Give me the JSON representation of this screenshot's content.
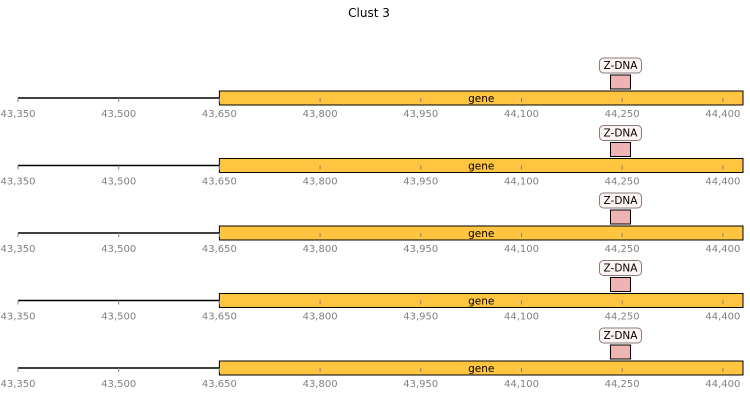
{
  "title": "Clust 3",
  "colors": {
    "gene": "#FFC440",
    "zdna": "#EEB4B4",
    "axis_line": "#000000",
    "tick_label": "#808080",
    "label_box_fill": "#FFF4F4",
    "label_box_stroke": "#8A7A7A"
  },
  "axis": {
    "min": 43350,
    "max": 44430,
    "ticks": [
      43350,
      43500,
      43650,
      43800,
      43950,
      44100,
      44250,
      44400
    ],
    "tick_labels": [
      "43,350",
      "43,500",
      "43,650",
      "43,800",
      "43,950",
      "44,100",
      "44,250",
      "44,400"
    ]
  },
  "tracks": [
    {
      "features": [
        {
          "kind": "gene",
          "label": "gene",
          "start": 43650,
          "end": 44430
        },
        {
          "kind": "zdna",
          "label": "Z-DNA",
          "start": 44240,
          "end": 44255
        }
      ]
    },
    {
      "features": [
        {
          "kind": "gene",
          "label": "gene",
          "start": 43650,
          "end": 44430
        },
        {
          "kind": "zdna",
          "label": "Z-DNA",
          "start": 44240,
          "end": 44255
        }
      ]
    },
    {
      "features": [
        {
          "kind": "gene",
          "label": "gene",
          "start": 43650,
          "end": 44430
        },
        {
          "kind": "zdna",
          "label": "Z-DNA",
          "start": 44240,
          "end": 44255
        }
      ]
    },
    {
      "features": [
        {
          "kind": "gene",
          "label": "gene",
          "start": 43650,
          "end": 44430
        },
        {
          "kind": "zdna",
          "label": "Z-DNA",
          "start": 44240,
          "end": 44255
        }
      ]
    },
    {
      "features": [
        {
          "kind": "gene",
          "label": "gene",
          "start": 43650,
          "end": 44430
        },
        {
          "kind": "zdna",
          "label": "Z-DNA",
          "start": 44240,
          "end": 44255
        }
      ]
    }
  ]
}
